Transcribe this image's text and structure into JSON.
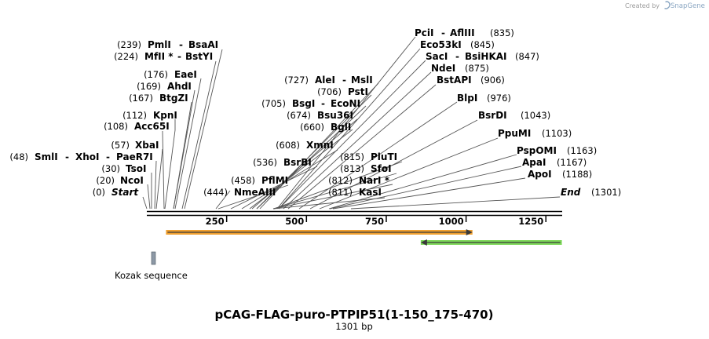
{
  "credit": {
    "created_by": "Created by",
    "brand": "SnapGene"
  },
  "map": {
    "title": "pCAG-FLAG-puro-PTPIP51(1-150_175-470)",
    "subtitle": "1301 bp",
    "length": 1301,
    "ticks": [
      250,
      500,
      750,
      1000,
      1250
    ],
    "features": [
      {
        "name": "Kozak sequence",
        "start": 18,
        "end": 20,
        "color": "#8d99a6"
      },
      {
        "name": "orange-arrow",
        "start": 60,
        "end": 1020,
        "color": "#f0a030",
        "dir": "forward"
      },
      {
        "name": "green-arrow",
        "start": 858,
        "end": 1300,
        "color": "#7ed85a",
        "dir": "reverse"
      }
    ]
  },
  "sites": [
    {
      "pos": "(0)",
      "name": "Start",
      "coord": 0,
      "italic": true
    },
    {
      "pos": "(20)",
      "name": "NcoI",
      "coord": 20
    },
    {
      "pos": "(30)",
      "name": "TsoI",
      "coord": 30
    },
    {
      "pos": "(48)",
      "name": "SmlI",
      "name2": "XhoI",
      "name3": "PaeR7I",
      "coord": 48
    },
    {
      "pos": "(57)",
      "name": "XbaI",
      "coord": 57
    },
    {
      "pos": "(108)",
      "name": "Acc65I",
      "coord": 108
    },
    {
      "pos": "(112)",
      "name": "KpnI",
      "coord": 112
    },
    {
      "pos": "(167)",
      "name": "BtgZI",
      "coord": 167
    },
    {
      "pos": "(169)",
      "name": "AhdI",
      "coord": 169
    },
    {
      "pos": "(176)",
      "name": "EaeI",
      "coord": 176
    },
    {
      "pos": "(224)",
      "name": "MfII *",
      "name2": "BstYI",
      "coord": 224
    },
    {
      "pos": "(239)",
      "name": "PmlI",
      "name2": "BsaAI",
      "coord": 239
    },
    {
      "pos": "(444)",
      "name": "NmeAIII",
      "coord": 444
    },
    {
      "pos": "(458)",
      "name": "PflMI",
      "coord": 458
    },
    {
      "pos": "(536)",
      "name": "BsrBI",
      "coord": 536
    },
    {
      "pos": "(608)",
      "name": "XmnI",
      "coord": 608
    },
    {
      "pos": "(660)",
      "name": "BglI",
      "coord": 660
    },
    {
      "pos": "(674)",
      "name": "Bsu36I",
      "coord": 674
    },
    {
      "pos": "(705)",
      "name": "BsgI",
      "name2": "EcoNI",
      "coord": 705
    },
    {
      "pos": "(706)",
      "name": "PstI",
      "coord": 706
    },
    {
      "pos": "(727)",
      "name": "AleI",
      "name2": "MslI",
      "coord": 727
    },
    {
      "pos": "(811)",
      "name": "KasI",
      "coord": 811
    },
    {
      "pos": "(812)",
      "name": "NarI *",
      "coord": 812
    },
    {
      "pos": "(813)",
      "name": "SfoI",
      "coord": 813
    },
    {
      "pos": "(815)",
      "name": "PluTI",
      "coord": 815
    },
    {
      "pos": "(835)",
      "name": "PciI",
      "name2": "AflIII",
      "coord": 835
    },
    {
      "pos": "(845)",
      "name": "Eco53kI",
      "coord": 845
    },
    {
      "pos": "(847)",
      "name": "SacI",
      "name2": "BsiHKAI",
      "coord": 847
    },
    {
      "pos": "(875)",
      "name": "NdeI",
      "coord": 875
    },
    {
      "pos": "(906)",
      "name": "BstAPI",
      "coord": 906
    },
    {
      "pos": "(976)",
      "name": "BlpI",
      "coord": 976
    },
    {
      "pos": "(1043)",
      "name": "BsrDI",
      "coord": 1043
    },
    {
      "pos": "(1103)",
      "name": "PpuMI",
      "coord": 1103
    },
    {
      "pos": "(1163)",
      "name": "PspOMI",
      "coord": 1163
    },
    {
      "pos": "(1167)",
      "name": "ApaI",
      "coord": 1167
    },
    {
      "pos": "(1188)",
      "name": "ApoI",
      "coord": 1188
    },
    {
      "pos": "(1301)",
      "name": "End",
      "coord": 1301,
      "italic": true
    }
  ]
}
